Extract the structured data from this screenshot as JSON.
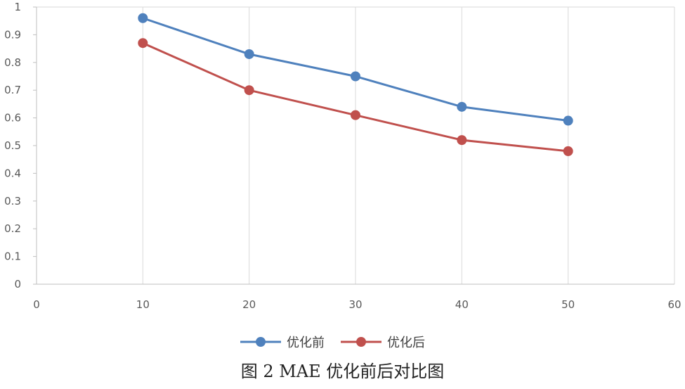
{
  "chart_data": {
    "type": "line",
    "x": [
      10,
      20,
      30,
      40,
      50
    ],
    "xlim": [
      0,
      60
    ],
    "ylim": [
      0,
      1
    ],
    "x_ticks": [
      "0",
      "10",
      "20",
      "30",
      "40",
      "50",
      "60"
    ],
    "y_ticks": [
      "0",
      "0.1",
      "0.2",
      "0.3",
      "0.4",
      "0.5",
      "0.6",
      "0.7",
      "0.8",
      "0.9",
      "1"
    ],
    "grid": "vertical",
    "legend_position": "bottom",
    "series": [
      {
        "name": "优化前",
        "color": "#4F81BD",
        "values": [
          0.96,
          0.83,
          0.75,
          0.64,
          0.59
        ]
      },
      {
        "name": "优化后",
        "color": "#C0504D",
        "values": [
          0.87,
          0.7,
          0.61,
          0.52,
          0.48
        ]
      }
    ]
  },
  "caption": "图 2 MAE 优化前后对比图"
}
